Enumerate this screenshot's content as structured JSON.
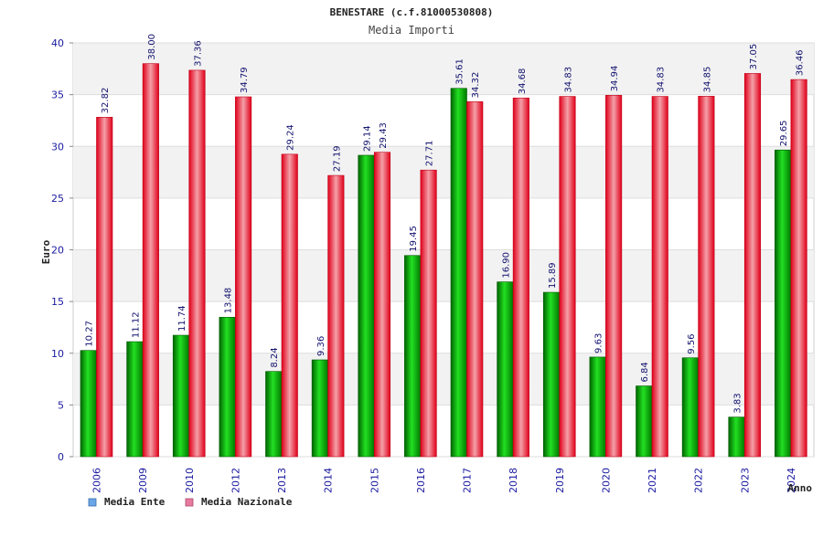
{
  "chart_data": {
    "type": "bar",
    "title": "BENESTARE (c.f.81000530808)",
    "subtitle": "Media Importi",
    "xlabel": "Anno",
    "ylabel": "Euro",
    "ylim": [
      0,
      40
    ],
    "yticks": [
      0,
      5,
      10,
      15,
      20,
      25,
      30,
      35,
      40
    ],
    "categories": [
      "2006",
      "2009",
      "2010",
      "2012",
      "2013",
      "2014",
      "2015",
      "2016",
      "2017",
      "2018",
      "2019",
      "2020",
      "2021",
      "2022",
      "2023",
      "2024"
    ],
    "series": [
      {
        "name": "Media Ente",
        "color": "#00c000",
        "values": [
          10.27,
          11.12,
          11.74,
          13.48,
          8.24,
          9.36,
          29.14,
          19.45,
          35.61,
          16.9,
          15.89,
          9.63,
          6.84,
          9.56,
          3.83,
          29.65
        ],
        "labels": [
          "10.27",
          "11.12",
          "11.74",
          "13.48",
          "8.24",
          "9.36",
          "29.14",
          "19.45",
          "35.61",
          "16.90",
          "15.89",
          "9.63",
          "6.84",
          "9.56",
          "3.83",
          "29.65"
        ]
      },
      {
        "name": "Media Nazionale",
        "color": "#e8202a",
        "values": [
          32.82,
          38.0,
          37.36,
          34.79,
          29.24,
          27.19,
          29.43,
          27.71,
          34.32,
          34.68,
          34.83,
          34.94,
          34.83,
          34.85,
          37.05,
          36.46
        ],
        "labels": [
          "32.82",
          "38.00",
          "37.36",
          "34.79",
          "29.24",
          "27.19",
          "29.43",
          "27.71",
          "34.32",
          "34.68",
          "34.83",
          "34.94",
          "34.83",
          "34.85",
          "37.05",
          "36.46"
        ]
      }
    ],
    "legend": {
      "placement": "bottom-left",
      "items": [
        {
          "label": "Media Ente",
          "color": "#6aa6e8"
        },
        {
          "label": "Media Nazionale",
          "color": "#e87aa0"
        }
      ]
    },
    "grid": true
  }
}
